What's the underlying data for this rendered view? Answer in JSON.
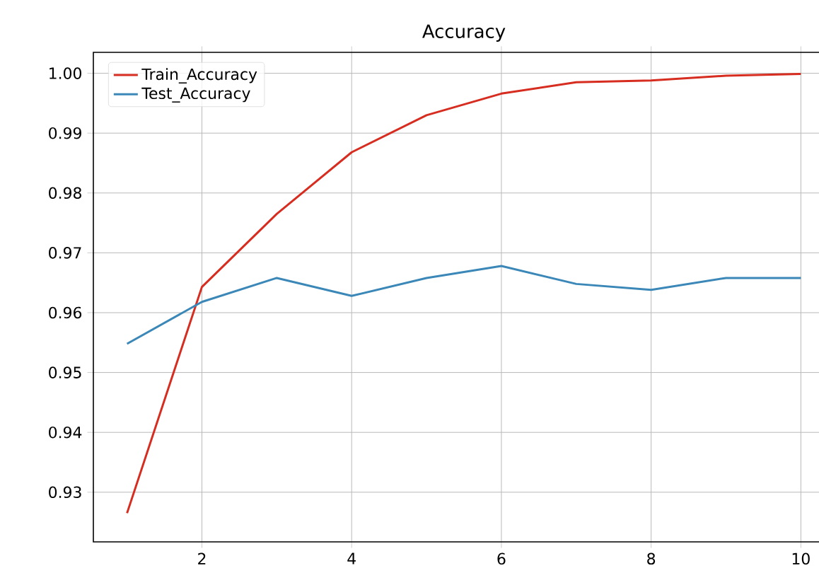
{
  "chart_data": {
    "type": "line",
    "title": "Accuracy",
    "x": [
      1,
      2,
      3,
      4,
      5,
      6,
      7,
      8,
      9,
      10
    ],
    "series": [
      {
        "name": "Train_Accuracy",
        "color": "#d62d20",
        "values": [
          0.9265,
          0.9643,
          0.9765,
          0.9868,
          0.993,
          0.9966,
          0.9985,
          0.9988,
          0.9996,
          0.9999
        ]
      },
      {
        "name": "Test_Accuracy",
        "color": "#3b88b8",
        "values": [
          0.9548,
          0.9618,
          0.9658,
          0.9628,
          0.9658,
          0.9678,
          0.9648,
          0.9638,
          0.9658,
          0.9658
        ]
      }
    ],
    "xlim": [
      0.55,
      10.45
    ],
    "ylim": [
      0.9217,
      1.0035
    ],
    "xticks": [
      2,
      4,
      6,
      8,
      10
    ],
    "yticks": [
      {
        "value": 0.93,
        "label": "0.93"
      },
      {
        "value": 0.94,
        "label": "0.94"
      },
      {
        "value": 0.95,
        "label": "0.95"
      },
      {
        "value": 0.96,
        "label": "0.96"
      },
      {
        "value": 0.97,
        "label": "0.97"
      },
      {
        "value": 0.98,
        "label": "0.98"
      },
      {
        "value": 0.99,
        "label": "0.99"
      },
      {
        "value": 1.0,
        "label": "1.00"
      }
    ],
    "grid": true,
    "legend": "top left",
    "marker": "none",
    "line_style": "solid"
  }
}
